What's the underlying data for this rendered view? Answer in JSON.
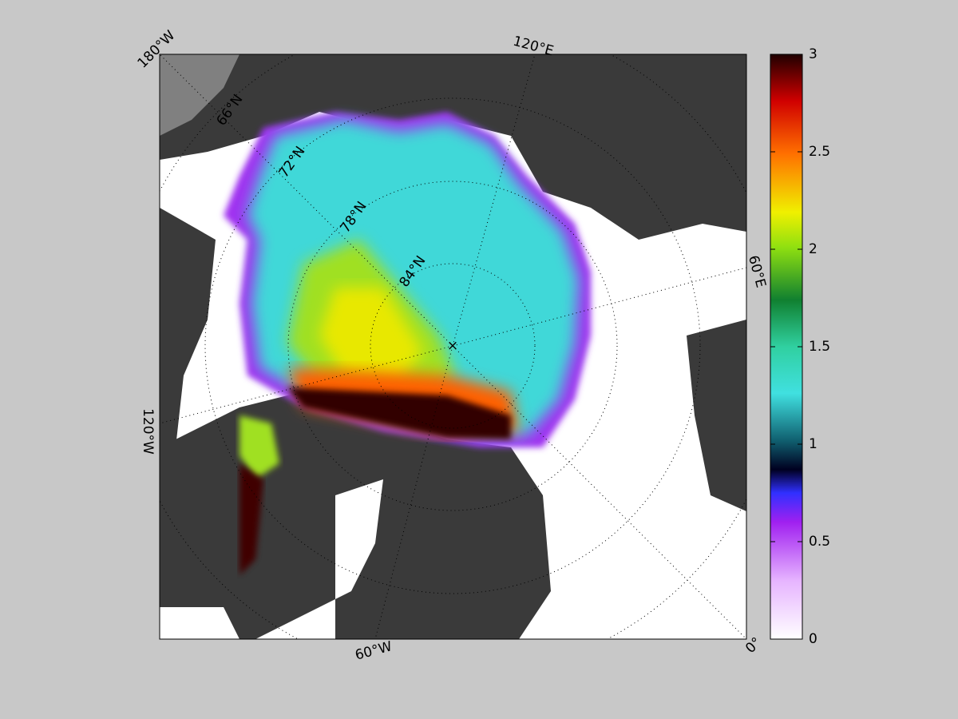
{
  "map": {
    "lon_labels": [
      "180°W",
      "120°E",
      "60°E",
      "0°",
      "60°W",
      "120°W"
    ],
    "lat_labels": [
      "66°N",
      "72°N",
      "78°N",
      "84°N"
    ]
  },
  "colorbar": {
    "lim": [
      0,
      3
    ],
    "ticks": [
      0,
      0.5,
      1,
      1.5,
      2,
      2.5,
      3
    ]
  }
}
